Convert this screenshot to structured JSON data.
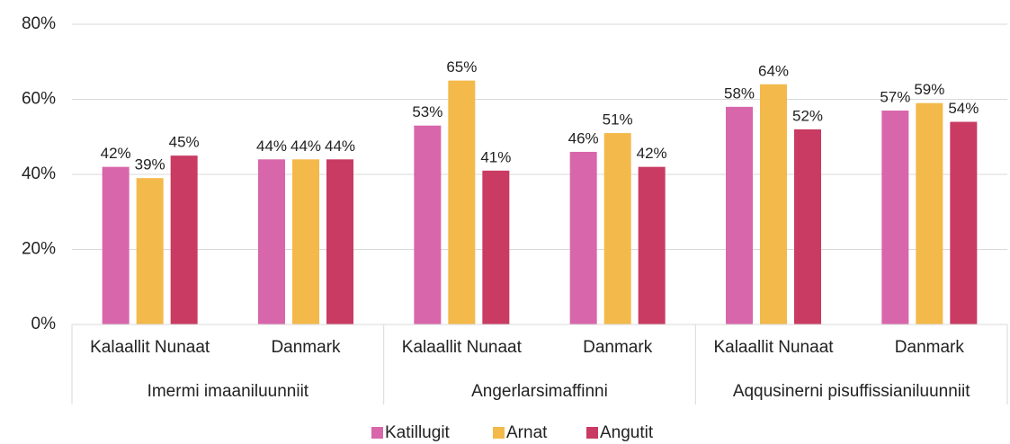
{
  "chart_data": {
    "type": "bar",
    "categories": [
      "Kalaallit Nunaat",
      "Danmark",
      "Kalaallit Nunaat",
      "Danmark",
      "Kalaallit Nunaat",
      "Danmark"
    ],
    "groups": [
      "Imermi imaaniluunniit",
      "Angerlarsimaffinni",
      "Aqqusinerni pisuffissianiluunniit"
    ],
    "series": [
      {
        "name": "Katillugit",
        "color": "#d866ab",
        "values": [
          42,
          44,
          53,
          46,
          58,
          57
        ],
        "value_labels": [
          "42%",
          "44%",
          "53%",
          "46%",
          "58%",
          "57%"
        ]
      },
      {
        "name": "Arnat",
        "color": "#f3b94a",
        "values": [
          39,
          44,
          65,
          51,
          64,
          59
        ],
        "value_labels": [
          "39%",
          "44%",
          "65%",
          "51%",
          "64%",
          "59%"
        ]
      },
      {
        "name": "Angutit",
        "color": "#c93b63",
        "values": [
          45,
          44,
          41,
          42,
          52,
          54
        ],
        "value_labels": [
          "45%",
          "44%",
          "41%",
          "42%",
          "52%",
          "54%"
        ]
      }
    ],
    "ylim": [
      0,
      80
    ],
    "yticks": [
      {
        "value": 0,
        "label": "0%"
      },
      {
        "value": 20,
        "label": "20%"
      },
      {
        "value": 40,
        "label": "40%"
      },
      {
        "value": 60,
        "label": "60%"
      },
      {
        "value": 80,
        "label": "80%"
      }
    ],
    "grid": true,
    "legend": "bottom"
  }
}
